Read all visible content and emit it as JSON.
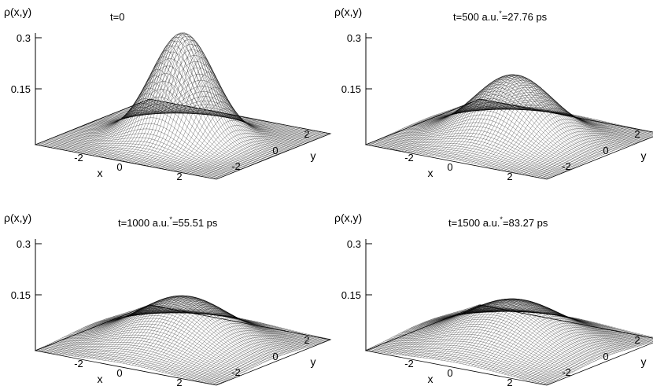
{
  "chart_data": [
    {
      "type": "surface",
      "title": "t=0",
      "title_sup": "",
      "zlabel": "ρ(x,y)",
      "xlabel": "x",
      "ylabel": "y",
      "zlim": [
        0,
        0.3
      ],
      "zticks": [
        "0.3",
        "0.15"
      ],
      "xticks": [
        "-2",
        "0",
        "2"
      ],
      "yticks": [
        "2",
        "0",
        "-2"
      ],
      "xlim": [
        -3,
        3
      ],
      "ylim": [
        -3,
        3
      ],
      "peak": 0.3,
      "width": 0.9
    },
    {
      "type": "surface",
      "title": "t=500 a.u.",
      "title_sup": "*",
      "title_rest": "=27.76 ps",
      "zlabel": "ρ(x,y)",
      "xlabel": "x",
      "ylabel": "y",
      "zlim": [
        0,
        0.3
      ],
      "zticks": [
        "0.3",
        "0.15"
      ],
      "xticks": [
        "-2",
        "0",
        "2"
      ],
      "yticks": [
        "2",
        "0",
        "-2"
      ],
      "xlim": [
        -3,
        3
      ],
      "ylim": [
        -3,
        3
      ],
      "peak": 0.18,
      "width": 1.15
    },
    {
      "type": "surface",
      "title": "t=1000 a.u.",
      "title_sup": "*",
      "title_rest": "=55.51 ps",
      "zlabel": "ρ(x,y)",
      "xlabel": "x",
      "ylabel": "y",
      "zlim": [
        0,
        0.3
      ],
      "zticks": [
        "0.3",
        "0.15"
      ],
      "xticks": [
        "-2",
        "0",
        "2"
      ],
      "yticks": [
        "2",
        "0",
        "-2"
      ],
      "xlim": [
        -3,
        3
      ],
      "ylim": [
        -3,
        3
      ],
      "peak": 0.135,
      "width": 1.35
    },
    {
      "type": "surface",
      "title": "t=1500 a.u.",
      "title_sup": "*",
      "title_rest": "=83.27 ps",
      "zlabel": "ρ(x,y)",
      "xlabel": "x",
      "ylabel": "y",
      "zlim": [
        0,
        0.3
      ],
      "zticks": [
        "0.3",
        "0.15"
      ],
      "xticks": [
        "-2",
        "0",
        "2"
      ],
      "yticks": [
        "2",
        "0",
        "-2"
      ],
      "xlim": [
        -3,
        3
      ],
      "ylim": [
        -3,
        3
      ],
      "peak": 0.125,
      "width": 1.45
    }
  ]
}
